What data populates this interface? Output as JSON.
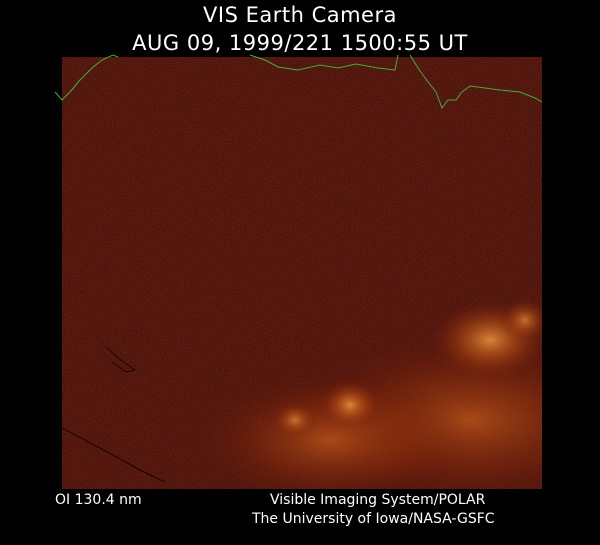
{
  "header": {
    "title": "VIS Earth Camera",
    "timestamp": "AUG 09, 1999/221 1500:55 UT"
  },
  "footer": {
    "wavelength": "OI  130.4 nm",
    "instrument": "Visible Imaging System/POLAR",
    "institution": "The University of Iowa/NASA-GSFC"
  },
  "colors": {
    "background": "#000000",
    "image_dark": "#3c0604",
    "image_mid": "#7a1c08",
    "aurora": "#c45a1a",
    "aurora_bright": "#e08a3a",
    "coastline": "#3fae3f",
    "text": "#ffffff"
  }
}
